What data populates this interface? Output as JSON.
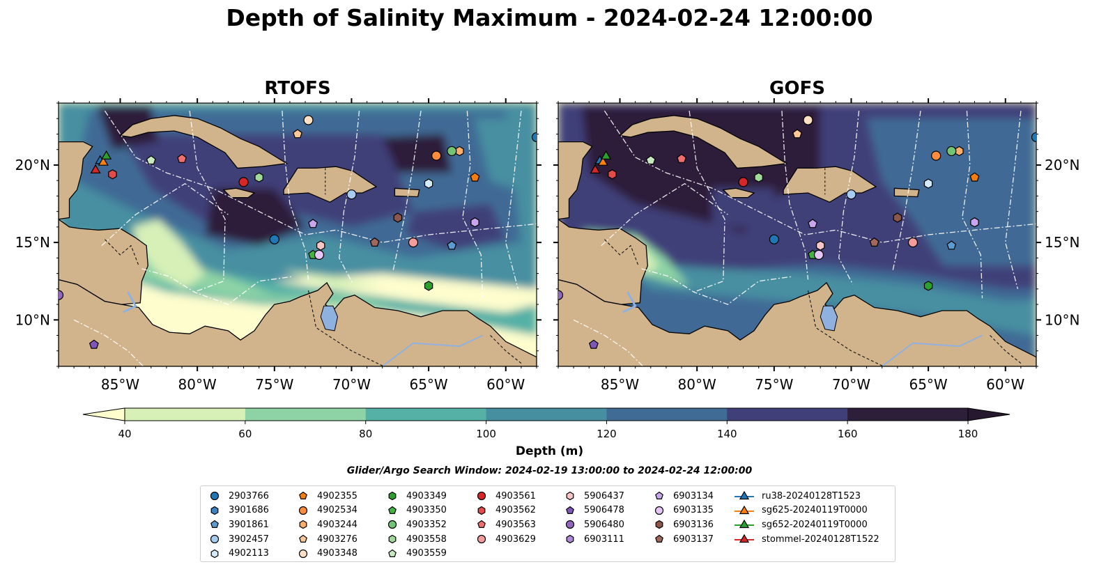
{
  "title": "Depth of Salinity Maximum - 2024-02-24 12:00:00",
  "panels": [
    {
      "id": "rtofs",
      "title": "RTOFS"
    },
    {
      "id": "gofs",
      "title": "GOFS"
    }
  ],
  "map": {
    "lon_range": [
      -89,
      -58
    ],
    "lat_range": [
      7,
      24
    ],
    "x_ticks": [
      "85°W",
      "80°W",
      "75°W",
      "70°W",
      "65°W",
      "60°W"
    ],
    "x_tick_values": [
      -85,
      -80,
      -75,
      -70,
      -65,
      -60
    ],
    "y_ticks": [
      "20°N",
      "15°N",
      "10°N"
    ],
    "y_tick_values": [
      20,
      15,
      10
    ],
    "land_color": "#d2b48c",
    "water_lake_color": "#8fb1e0",
    "eez_line_color": "#ffffff"
  },
  "colorbar": {
    "label": "Depth (m)",
    "ticks": [
      "40",
      "60",
      "80",
      "100",
      "120",
      "140",
      "160",
      "180"
    ],
    "levels": [
      40,
      60,
      80,
      100,
      120,
      140,
      160,
      180
    ],
    "colors": [
      "#fdfdcd",
      "#d7f0b8",
      "#8dd3a5",
      "#55b0a6",
      "#468fa1",
      "#3f6b95",
      "#403f79",
      "#2d1f3a",
      "#26182e"
    ],
    "extend": "both"
  },
  "search_window": "Glider/Argo Search Window: 2024-02-19 13:00:00 to 2024-02-24 12:00:00",
  "legend": {
    "columns": [
      [
        {
          "label": "2903766",
          "marker": "circle",
          "color": "#1f77b4"
        },
        {
          "label": "3901686",
          "marker": "hexagon",
          "color": "#3a83c2"
        },
        {
          "label": "3901861",
          "marker": "pentagon",
          "color": "#5b9bd0"
        },
        {
          "label": "3902457",
          "marker": "circle",
          "color": "#a6cdf0"
        },
        {
          "label": "4902113",
          "marker": "hexagon",
          "color": "#d4ebfb"
        }
      ],
      [
        {
          "label": "4902355",
          "marker": "pentagon",
          "color": "#f47d10"
        },
        {
          "label": "4902534",
          "marker": "circle",
          "color": "#fd8d3c"
        },
        {
          "label": "4903244",
          "marker": "hexagon",
          "color": "#fdae6b"
        },
        {
          "label": "4903276",
          "marker": "pentagon",
          "color": "#fdc896"
        },
        {
          "label": "4903348",
          "marker": "circle",
          "color": "#fde0c5"
        }
      ],
      [
        {
          "label": "4903349",
          "marker": "hexagon",
          "color": "#2ca02c"
        },
        {
          "label": "4903350",
          "marker": "pentagon",
          "color": "#41b441"
        },
        {
          "label": "4903352",
          "marker": "circle",
          "color": "#74c476"
        },
        {
          "label": "4903558",
          "marker": "hexagon",
          "color": "#a1d99b"
        },
        {
          "label": "4903559",
          "marker": "pentagon",
          "color": "#c7e9c0"
        }
      ],
      [
        {
          "label": "4903561",
          "marker": "circle",
          "color": "#d62728"
        },
        {
          "label": "4903562",
          "marker": "hexagon",
          "color": "#e34a4a"
        },
        {
          "label": "4903563",
          "marker": "pentagon",
          "color": "#ef6f6f"
        },
        {
          "label": "4903629",
          "marker": "circle",
          "color": "#f49c9c"
        }
      ],
      [
        {
          "label": "5906437",
          "marker": "hexagon",
          "color": "#f7c6c6"
        },
        {
          "label": "5906478",
          "marker": "pentagon",
          "color": "#7e57b8"
        },
        {
          "label": "5906480",
          "marker": "circle",
          "color": "#9467bd"
        },
        {
          "label": "6903111",
          "marker": "hexagon",
          "color": "#b08ad6"
        }
      ],
      [
        {
          "label": "6903134",
          "marker": "pentagon",
          "color": "#c9a5ee"
        },
        {
          "label": "6903135",
          "marker": "circle",
          "color": "#e6c6f7"
        },
        {
          "label": "6903136",
          "marker": "hexagon",
          "color": "#8c564b"
        },
        {
          "label": "6903137",
          "marker": "pentagon",
          "color": "#a0685c"
        }
      ],
      [
        {
          "label": "ru38-20240128T1523",
          "marker": "triangle-line",
          "color": "#1f77b4"
        },
        {
          "label": "sg625-20240119T0000",
          "marker": "triangle-line",
          "color": "#ff7f0e"
        },
        {
          "label": "sg652-20240119T0000",
          "marker": "triangle-line",
          "color": "#2ca02c"
        },
        {
          "label": "stommel-20240128T1522",
          "marker": "triangle-line",
          "color": "#d62728"
        }
      ]
    ]
  },
  "markers": [
    {
      "lon": -75.0,
      "lat": 15.2,
      "marker": "circle",
      "color": "#1f77b4"
    },
    {
      "lon": -58.0,
      "lat": 21.8,
      "marker": "circle",
      "color": "#1f77b4"
    },
    {
      "lon": -70.0,
      "lat": 18.1,
      "marker": "circle",
      "color": "#a6cdf0"
    },
    {
      "lon": -65.0,
      "lat": 18.8,
      "marker": "hexagon",
      "color": "#d4ebfb"
    },
    {
      "lon": -63.5,
      "lat": 14.8,
      "marker": "pentagon",
      "color": "#5b9bd0"
    },
    {
      "lon": -62.0,
      "lat": 19.2,
      "marker": "pentagon",
      "color": "#f47d10"
    },
    {
      "lon": -64.5,
      "lat": 20.6,
      "marker": "circle",
      "color": "#fd8d3c"
    },
    {
      "lon": -63.0,
      "lat": 20.9,
      "marker": "hexagon",
      "color": "#fdae6b"
    },
    {
      "lon": -73.5,
      "lat": 22.0,
      "marker": "pentagon",
      "color": "#fdc896"
    },
    {
      "lon": -72.8,
      "lat": 22.9,
      "marker": "circle",
      "color": "#fde0c5"
    },
    {
      "lon": -65.0,
      "lat": 12.2,
      "marker": "hexagon",
      "color": "#2ca02c"
    },
    {
      "lon": -72.5,
      "lat": 14.2,
      "marker": "pentagon",
      "color": "#41b441"
    },
    {
      "lon": -63.5,
      "lat": 20.9,
      "marker": "circle",
      "color": "#74c476"
    },
    {
      "lon": -76.0,
      "lat": 19.2,
      "marker": "hexagon",
      "color": "#a1d99b"
    },
    {
      "lon": -83.0,
      "lat": 20.3,
      "marker": "pentagon",
      "color": "#c7e9c0"
    },
    {
      "lon": -77.0,
      "lat": 18.9,
      "marker": "circle",
      "color": "#d62728"
    },
    {
      "lon": -85.5,
      "lat": 19.4,
      "marker": "hexagon",
      "color": "#e34a4a"
    },
    {
      "lon": -81.0,
      "lat": 20.4,
      "marker": "pentagon",
      "color": "#ef6f6f"
    },
    {
      "lon": -66.0,
      "lat": 15.0,
      "marker": "circle",
      "color": "#f49c9c"
    },
    {
      "lon": -72.0,
      "lat": 14.8,
      "marker": "hexagon",
      "color": "#f7c6c6"
    },
    {
      "lon": -86.7,
      "lat": 8.4,
      "marker": "pentagon",
      "color": "#7e57b8"
    },
    {
      "lon": -89.0,
      "lat": 11.6,
      "marker": "circle",
      "color": "#9467bd"
    },
    {
      "lon": -62.0,
      "lat": 16.3,
      "marker": "hexagon",
      "color": "#c9a5ee"
    },
    {
      "lon": -72.5,
      "lat": 16.2,
      "marker": "pentagon",
      "color": "#c9a5ee"
    },
    {
      "lon": -72.1,
      "lat": 14.2,
      "marker": "circle",
      "color": "#e6c6f7"
    },
    {
      "lon": -67.0,
      "lat": 16.6,
      "marker": "hexagon",
      "color": "#8c564b"
    },
    {
      "lon": -68.5,
      "lat": 15.0,
      "marker": "pentagon",
      "color": "#a0685c"
    },
    {
      "lon": -86.3,
      "lat": 20.3,
      "marker": "triangle",
      "color": "#1f77b4"
    },
    {
      "lon": -86.1,
      "lat": 20.2,
      "marker": "triangle",
      "color": "#ff7f0e"
    },
    {
      "lon": -85.9,
      "lat": 20.6,
      "marker": "triangle",
      "color": "#2ca02c"
    },
    {
      "lon": -86.6,
      "lat": 19.7,
      "marker": "triangle",
      "color": "#d62728"
    }
  ]
}
